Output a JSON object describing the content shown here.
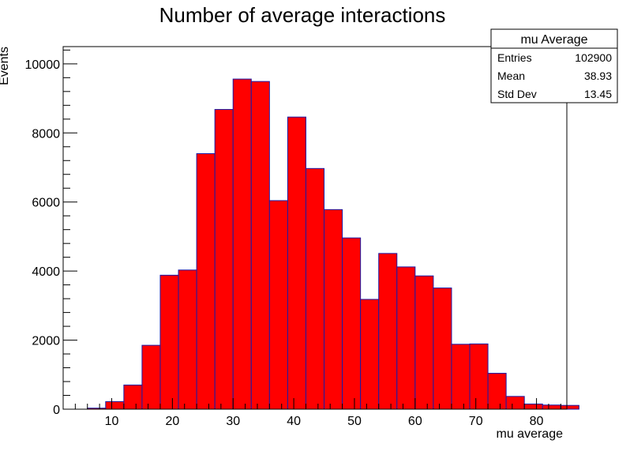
{
  "chart_data": {
    "type": "bar",
    "title": "Number of average interactions",
    "xlabel": "mu average",
    "ylabel": "Events",
    "xlim": [
      2,
      85
    ],
    "ylim": [
      0,
      10500
    ],
    "x_ticks": [
      10,
      20,
      30,
      40,
      50,
      60,
      70,
      80
    ],
    "y_ticks": [
      0,
      2000,
      4000,
      6000,
      8000,
      10000
    ],
    "bin_width": 3,
    "bin_edges_start": 6,
    "values": [
      30,
      220,
      700,
      1850,
      3880,
      4030,
      7400,
      8680,
      9560,
      9490,
      6040,
      8460,
      6970,
      5780,
      4960,
      3180,
      4510,
      4120,
      3860,
      3510,
      1880,
      1890,
      1040,
      370,
      150,
      120,
      110
    ],
    "fill_color": "#ff0000",
    "line_color": "#1a1aa6",
    "grid": false,
    "stats_box": {
      "title": "mu Average",
      "rows": [
        {
          "label": "Entries",
          "value": "102900"
        },
        {
          "label": "Mean",
          "value": "38.93"
        },
        {
          "label": "Std Dev",
          "value": "13.45"
        }
      ]
    }
  }
}
